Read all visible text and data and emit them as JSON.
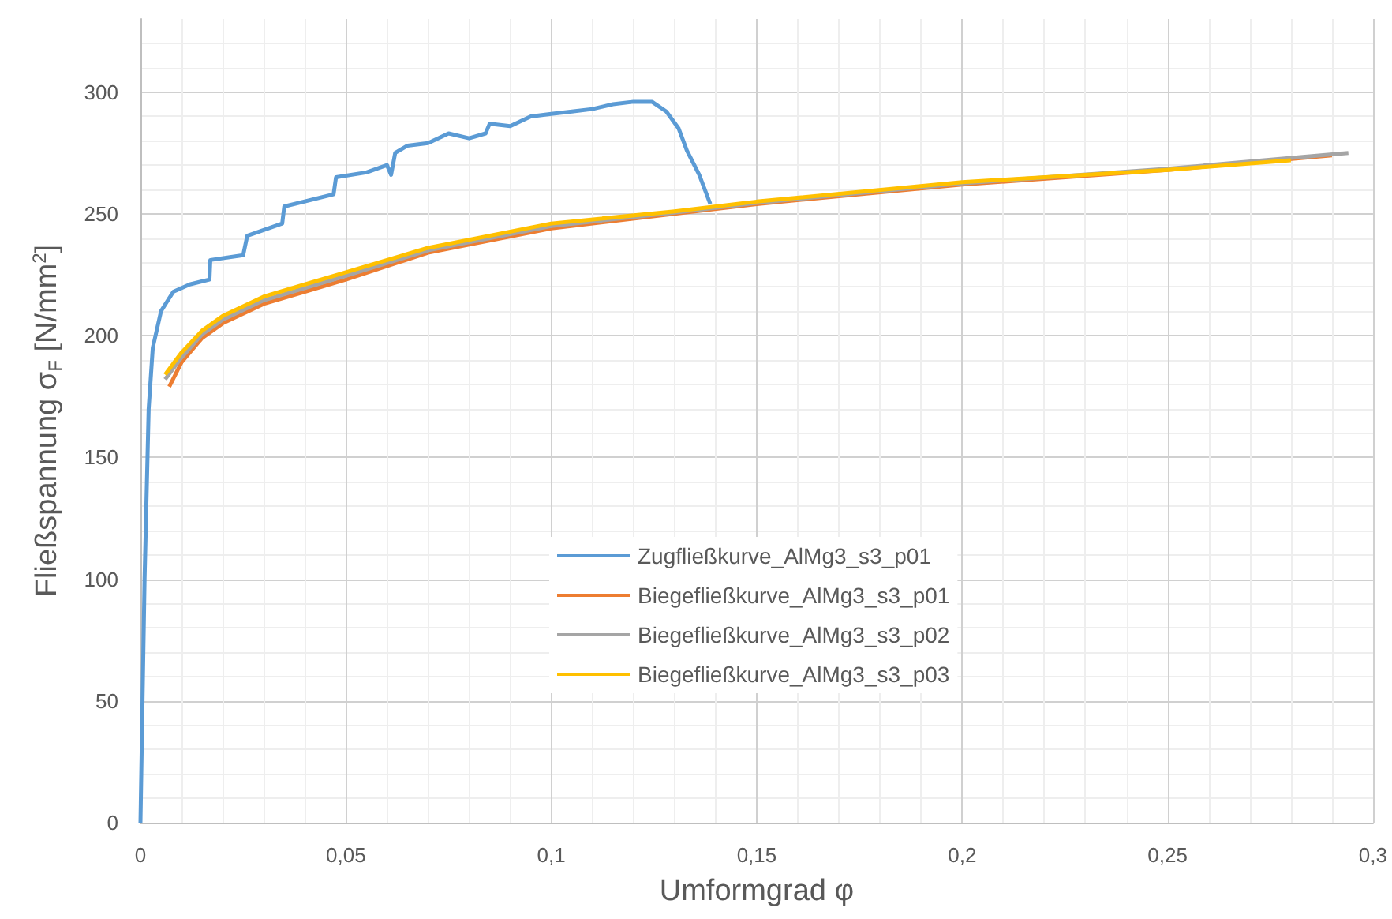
{
  "chart_data": {
    "type": "line",
    "xlabel": "Umformgrad φ",
    "ylabel": "Fließspannung σ$_{F}$ [N/mm$^{2}$]",
    "xlim": [
      0,
      0.3
    ],
    "xticks": [
      {
        "value": 0,
        "label": "0"
      },
      {
        "value": 0.05,
        "label": "0,05"
      },
      {
        "value": 0.1,
        "label": "0,1"
      },
      {
        "value": 0.15,
        "label": "0,15"
      },
      {
        "value": 0.2,
        "label": "0,2"
      },
      {
        "value": 0.25,
        "label": "0,25"
      },
      {
        "value": 0.3,
        "label": "0,3"
      }
    ],
    "ylim": [
      0,
      330
    ],
    "yticks": [
      0,
      50,
      100,
      150,
      200,
      250,
      300
    ],
    "grid": true,
    "legend": "bottom",
    "marker": "none",
    "line_style": "solid",
    "series": [
      {
        "name": "Zugfließkurve_AlMg3_s3_p01",
        "color": "#5b9bd5",
        "x": [
          0,
          0.001,
          0.002,
          0.003,
          0.005,
          0.008,
          0.012,
          0.0168,
          0.017,
          0.025,
          0.026,
          0.0345,
          0.035,
          0.047,
          0.0476,
          0.055,
          0.06,
          0.061,
          0.062,
          0.065,
          0.07,
          0.075,
          0.08,
          0.084,
          0.085,
          0.09,
          0.095,
          0.1,
          0.105,
          0.11,
          0.115,
          0.12,
          0.1245,
          0.128,
          0.131,
          0.133,
          0.136,
          0.1387
        ],
        "values": [
          0,
          100,
          170,
          195,
          210,
          218,
          221,
          223,
          231,
          233,
          241,
          246,
          253,
          258,
          265,
          267,
          270,
          266,
          275,
          278,
          279,
          283,
          281,
          283,
          287,
          286,
          290,
          291,
          292,
          293,
          295,
          296,
          296,
          292,
          285,
          276,
          266,
          254
        ]
      },
      {
        "name": "Biegefließkurve_AlMg3_s3_p01",
        "color": "#ed7d31",
        "x": [
          0.007,
          0.01,
          0.015,
          0.02,
          0.03,
          0.04,
          0.05,
          0.07,
          0.1,
          0.13,
          0.15,
          0.2,
          0.25,
          0.29
        ],
        "values": [
          179,
          189,
          199,
          205,
          213,
          218,
          223,
          234,
          244,
          250,
          254,
          262,
          268,
          274
        ]
      },
      {
        "name": "Biegefließkurve_AlMg3_s3_p02",
        "color": "#a5a5a5",
        "x": [
          0.006,
          0.01,
          0.015,
          0.02,
          0.03,
          0.04,
          0.05,
          0.07,
          0.1,
          0.13,
          0.15,
          0.2,
          0.25,
          0.294
        ],
        "values": [
          182,
          191,
          200.5,
          206.5,
          214.5,
          219.5,
          224.5,
          235,
          245,
          250.5,
          254.5,
          262.5,
          268.5,
          275
        ]
      },
      {
        "name": "Biegefließkurve_AlMg3_s3_p03",
        "color": "#ffc000",
        "x": [
          0.006,
          0.01,
          0.015,
          0.02,
          0.03,
          0.04,
          0.05,
          0.07,
          0.1,
          0.13,
          0.15,
          0.2,
          0.25,
          0.28
        ],
        "values": [
          184,
          193,
          202,
          208,
          216,
          221,
          226,
          236,
          246,
          251,
          255,
          263,
          268,
          272
        ]
      }
    ]
  }
}
